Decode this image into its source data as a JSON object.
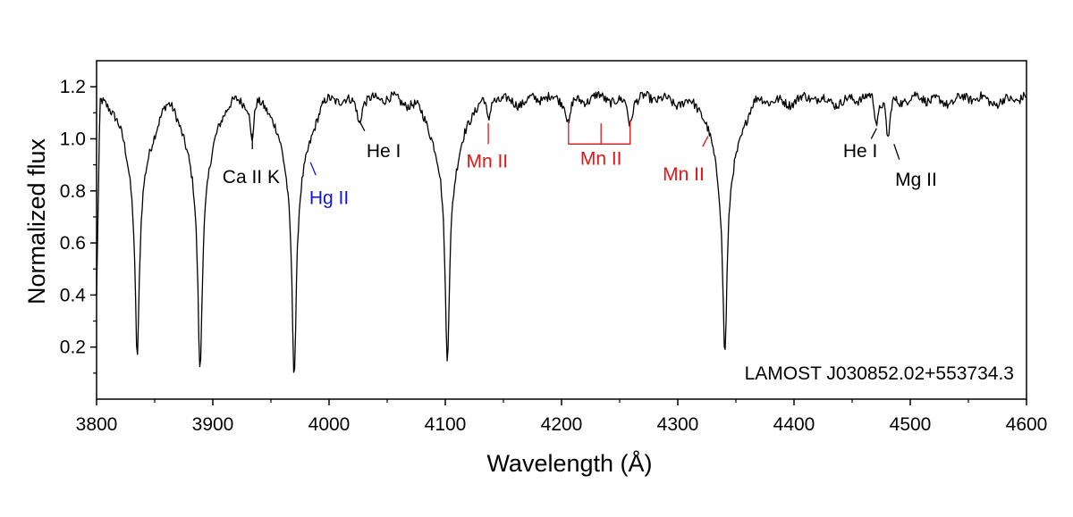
{
  "chart_data": {
    "type": "line",
    "xlabel": "Wavelength (Å)",
    "ylabel": "Normalized flux",
    "xlim": [
      3800,
      4600
    ],
    "ylim": [
      0.0,
      1.3
    ],
    "x_ticks": [
      3800,
      3900,
      4000,
      4100,
      4200,
      4300,
      4400,
      4500,
      4600
    ],
    "x_tick_labels": [
      "3800",
      "3900",
      "4000",
      "4100",
      "4200",
      "4300",
      "4400",
      "4500",
      "4600"
    ],
    "y_ticks": [
      0.2,
      0.4,
      0.6,
      0.8,
      1.0,
      1.2
    ],
    "y_tick_labels": [
      "0.2",
      "0.4",
      "0.6",
      "0.8",
      "1.0",
      "1.2"
    ],
    "grid": false,
    "star_label": "LAMOST J030852.02+553734.3",
    "series": [
      {
        "color": "#000000",
        "continuum": 1.15,
        "x_range": [
          3800,
          4600
        ],
        "absorption_lines": [
          {
            "x": 3835,
            "min_flux": 0.18
          },
          {
            "x": 3889,
            "min_flux": 0.13
          },
          {
            "x": 3933.7,
            "min_flux": 1.02
          },
          {
            "x": 3970,
            "min_flux": 0.11
          },
          {
            "x": 4026,
            "min_flux": 1.08
          },
          {
            "x": 4101.7,
            "min_flux": 0.15
          },
          {
            "x": 4137,
            "min_flux": 1.06
          },
          {
            "x": 4206,
            "min_flux": 1.07
          },
          {
            "x": 4259,
            "min_flux": 1.07
          },
          {
            "x": 4340.5,
            "min_flux": 0.19
          },
          {
            "x": 4471,
            "min_flux": 1.06
          },
          {
            "x": 4481,
            "min_flux": 1.01
          }
        ]
      }
    ],
    "annotations": [
      {
        "label": "Ca II K",
        "color": "#000000",
        "marker_x": 3934,
        "marker_y": [
          1.02,
          0.96
        ],
        "text_x": 3933,
        "text_y": 0.83,
        "anchor": "middle"
      },
      {
        "label": "Hg II",
        "color": "#1515e0",
        "marker_x": 3984,
        "marker_y": [
          0.91,
          0.86
        ],
        "text_x": 4000,
        "text_y": 0.75,
        "anchor": "middle"
      },
      {
        "label": "He I",
        "color": "#000000",
        "marker_x": 4026,
        "marker_y": [
          1.07,
          1.03
        ],
        "text_x": 4047,
        "text_y": 0.93,
        "anchor": "middle"
      },
      {
        "label": "Mn II",
        "color": "#e01515",
        "marker_x": 4137,
        "marker_y": [
          1.06,
          0.98
        ],
        "text_x": 4136,
        "text_y": 0.89,
        "anchor": "middle"
      },
      {
        "label": "Mn II",
        "color": "#e01515",
        "marker_x": 4234,
        "marker_y": [
          1.06,
          0.98
        ],
        "text_x": 4234,
        "text_y": 0.9,
        "anchor": "middle"
      },
      {
        "label": "Mn II",
        "color": "#e01515",
        "marker_x": 4326,
        "marker_y": [
          1.01,
          0.97
        ],
        "text_x": 4305,
        "text_y": 0.84,
        "anchor": "middle"
      },
      {
        "label": "He I",
        "color": "#000000",
        "marker_x": 4471,
        "marker_y": [
          1.04,
          1.0
        ],
        "text_x": 4457,
        "text_y": 0.93,
        "anchor": "middle"
      },
      {
        "label": "Mg II",
        "color": "#000000",
        "marker_x": 4486,
        "marker_y": [
          0.98,
          0.92
        ],
        "text_x": 4505,
        "text_y": 0.82,
        "anchor": "middle"
      }
    ],
    "bracket": {
      "color": "#e01515",
      "x": [
        4206,
        4259
      ],
      "y_top": 1.07,
      "y_bottom": 0.98
    }
  }
}
